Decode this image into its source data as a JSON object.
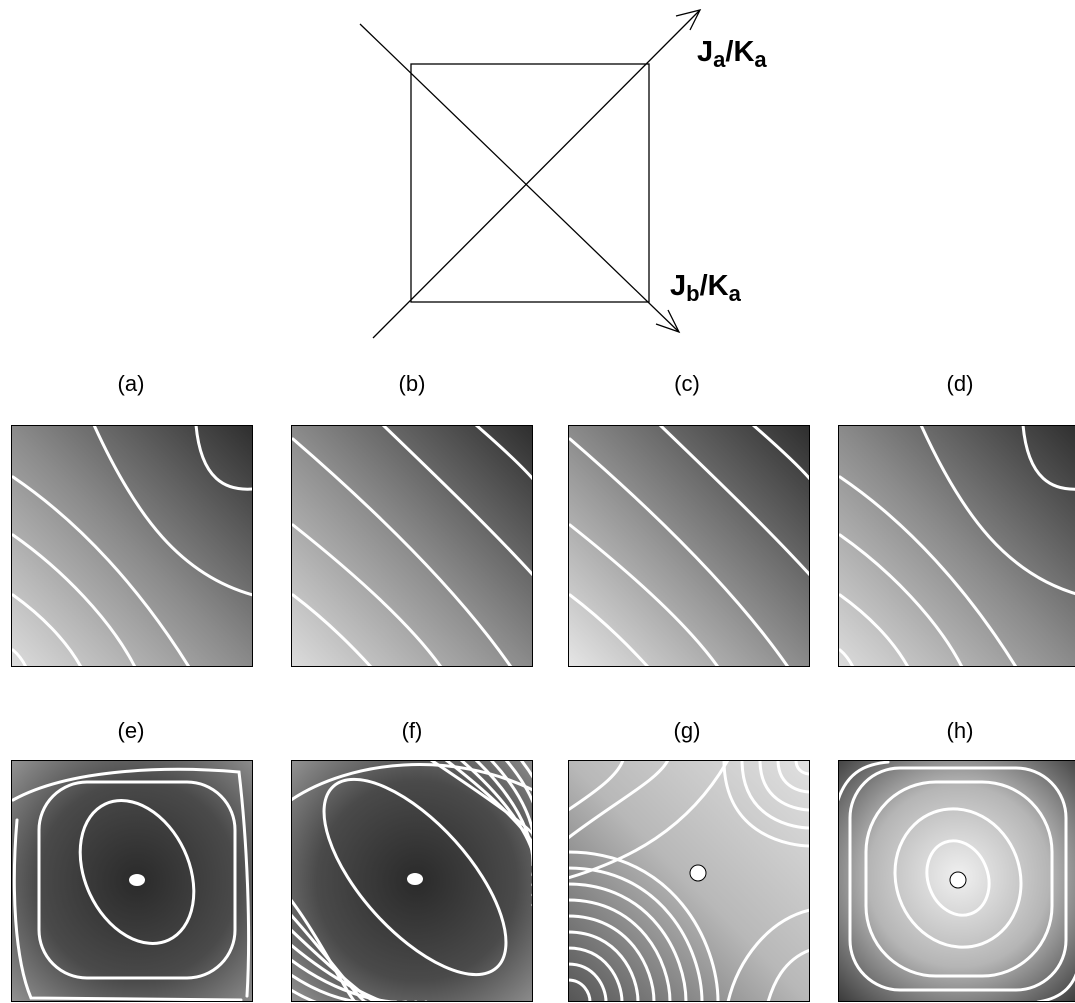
{
  "top_diagram": {
    "axis_a": {
      "symbol": "J",
      "sub": "a",
      "slash": "/",
      "symbol2": "K",
      "sub2": "a"
    },
    "axis_b": {
      "symbol": "J",
      "sub": "b",
      "slash": "/",
      "symbol2": "K",
      "sub2": "a"
    }
  },
  "panels": [
    {
      "label": "(a)",
      "kind": "diag-arcs",
      "center": null
    },
    {
      "label": "(b)",
      "kind": "diag-lines",
      "center": null
    },
    {
      "label": "(c)",
      "kind": "diag-lines-light",
      "center": null
    },
    {
      "label": "(d)",
      "kind": "diag-arcs",
      "center": null
    },
    {
      "label": "(e)",
      "kind": "minimum",
      "center": "filled"
    },
    {
      "label": "(f)",
      "kind": "elongated-minimum",
      "center": "filled"
    },
    {
      "label": "(g)",
      "kind": "saddle",
      "center": "open"
    },
    {
      "label": "(h)",
      "kind": "maximum",
      "center": "open"
    }
  ],
  "colors": {
    "contour": "#ffffff",
    "frame": "#000000"
  }
}
